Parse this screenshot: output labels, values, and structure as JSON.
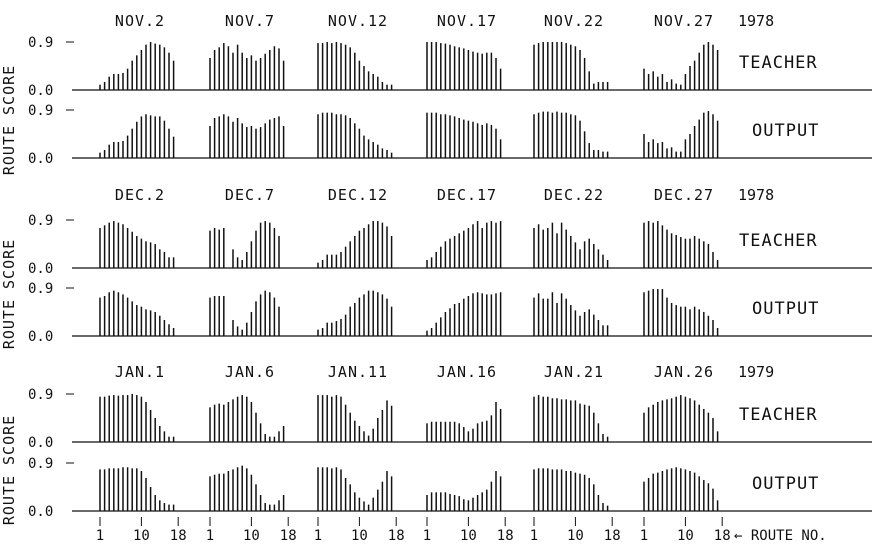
{
  "chart_data": {
    "type": "bar",
    "y_axis_label": "ROUTE SCORE",
    "y_ticks": [
      "0.9",
      "0.0"
    ],
    "ylim": [
      0,
      0.9
    ],
    "x_ticks": [
      "1",
      "10",
      "18"
    ],
    "x_axis_label": "ROUTE NO.",
    "routes": [
      1,
      2,
      3,
      4,
      5,
      6,
      7,
      8,
      9,
      10,
      11,
      12,
      13,
      14,
      15,
      16,
      17,
      18
    ],
    "groups": [
      {
        "year": "1978",
        "dates": [
          "NOV.2",
          "NOV.7",
          "NOV.12",
          "NOV.17",
          "NOV.22",
          "NOV.27"
        ],
        "teacher": {
          "label": "TEACHER",
          "panels": [
            [
              0.1,
              0.15,
              0.25,
              0.3,
              0.3,
              0.32,
              0.4,
              0.55,
              0.65,
              0.75,
              0.85,
              0.9,
              0.87,
              0.85,
              0.8,
              0.7,
              0.55,
              0.0
            ],
            [
              0.6,
              0.75,
              0.8,
              0.88,
              0.82,
              0.7,
              0.85,
              0.7,
              0.6,
              0.65,
              0.55,
              0.6,
              0.68,
              0.75,
              0.82,
              0.78,
              0.55,
              0.0
            ],
            [
              0.88,
              0.88,
              0.9,
              0.88,
              0.9,
              0.88,
              0.85,
              0.8,
              0.7,
              0.55,
              0.45,
              0.35,
              0.3,
              0.25,
              0.15,
              0.1,
              0.1,
              0.0
            ],
            [
              0.9,
              0.9,
              0.9,
              0.88,
              0.87,
              0.85,
              0.82,
              0.8,
              0.78,
              0.75,
              0.72,
              0.7,
              0.68,
              0.7,
              0.7,
              0.6,
              0.4,
              0.0
            ],
            [
              0.85,
              0.88,
              0.9,
              0.9,
              0.9,
              0.9,
              0.9,
              0.88,
              0.85,
              0.82,
              0.75,
              0.6,
              0.35,
              0.12,
              0.15,
              0.15,
              0.15,
              0.0
            ],
            [
              0.4,
              0.3,
              0.35,
              0.25,
              0.3,
              0.15,
              0.2,
              0.12,
              0.1,
              0.3,
              0.45,
              0.55,
              0.7,
              0.85,
              0.9,
              0.85,
              0.75,
              0.0
            ]
          ]
        },
        "output": {
          "label": "OUTPUT",
          "panels": [
            [
              0.1,
              0.15,
              0.25,
              0.3,
              0.3,
              0.32,
              0.42,
              0.55,
              0.68,
              0.78,
              0.82,
              0.8,
              0.78,
              0.78,
              0.7,
              0.55,
              0.4,
              0.0
            ],
            [
              0.6,
              0.75,
              0.78,
              0.82,
              0.78,
              0.68,
              0.75,
              0.65,
              0.58,
              0.6,
              0.55,
              0.58,
              0.65,
              0.72,
              0.75,
              0.78,
              0.6,
              0.0
            ],
            [
              0.82,
              0.85,
              0.85,
              0.85,
              0.82,
              0.82,
              0.8,
              0.75,
              0.65,
              0.55,
              0.42,
              0.35,
              0.3,
              0.25,
              0.18,
              0.15,
              0.1,
              0.0
            ],
            [
              0.85,
              0.85,
              0.85,
              0.82,
              0.82,
              0.8,
              0.78,
              0.75,
              0.72,
              0.7,
              0.68,
              0.65,
              0.62,
              0.65,
              0.62,
              0.55,
              0.35,
              0.0
            ],
            [
              0.82,
              0.85,
              0.87,
              0.87,
              0.85,
              0.87,
              0.85,
              0.85,
              0.82,
              0.8,
              0.7,
              0.5,
              0.28,
              0.15,
              0.15,
              0.12,
              0.12,
              0.0
            ],
            [
              0.45,
              0.3,
              0.35,
              0.28,
              0.3,
              0.18,
              0.2,
              0.12,
              0.12,
              0.35,
              0.45,
              0.6,
              0.72,
              0.85,
              0.88,
              0.82,
              0.7,
              0.0
            ]
          ]
        }
      },
      {
        "year": "1978",
        "dates": [
          "DEC.2",
          "DEC.7",
          "DEC.12",
          "DEC.17",
          "DEC.22",
          "DEC.27"
        ],
        "teacher": {
          "label": "TEACHER",
          "panels": [
            [
              0.75,
              0.8,
              0.85,
              0.88,
              0.85,
              0.82,
              0.75,
              0.68,
              0.6,
              0.55,
              0.5,
              0.48,
              0.45,
              0.35,
              0.3,
              0.2,
              0.2,
              0.0
            ],
            [
              0.7,
              0.75,
              0.72,
              0.75,
              0.0,
              0.35,
              0.2,
              0.15,
              0.3,
              0.5,
              0.7,
              0.85,
              0.88,
              0.85,
              0.75,
              0.6,
              0.0,
              0.0
            ],
            [
              0.1,
              0.15,
              0.25,
              0.25,
              0.25,
              0.3,
              0.4,
              0.5,
              0.6,
              0.7,
              0.75,
              0.82,
              0.88,
              0.88,
              0.85,
              0.78,
              0.6,
              0.0
            ],
            [
              0.15,
              0.2,
              0.3,
              0.4,
              0.5,
              0.55,
              0.6,
              0.65,
              0.7,
              0.75,
              0.82,
              0.88,
              0.75,
              0.85,
              0.88,
              0.85,
              0.88,
              0.0
            ],
            [
              0.75,
              0.82,
              0.72,
              0.75,
              0.85,
              0.65,
              0.85,
              0.72,
              0.6,
              0.48,
              0.35,
              0.5,
              0.55,
              0.45,
              0.35,
              0.25,
              0.15,
              0.0
            ],
            [
              0.85,
              0.88,
              0.85,
              0.88,
              0.8,
              0.72,
              0.65,
              0.62,
              0.58,
              0.55,
              0.55,
              0.6,
              0.55,
              0.5,
              0.45,
              0.3,
              0.15,
              0.0
            ]
          ]
        },
        "output": {
          "label": "OUTPUT",
          "panels": [
            [
              0.72,
              0.75,
              0.82,
              0.85,
              0.82,
              0.78,
              0.72,
              0.65,
              0.58,
              0.55,
              0.5,
              0.48,
              0.45,
              0.38,
              0.3,
              0.22,
              0.15,
              0.0
            ],
            [
              0.72,
              0.75,
              0.75,
              0.75,
              0.0,
              0.3,
              0.18,
              0.12,
              0.25,
              0.45,
              0.65,
              0.78,
              0.85,
              0.82,
              0.72,
              0.55,
              0.0,
              0.0
            ],
            [
              0.12,
              0.15,
              0.25,
              0.25,
              0.28,
              0.32,
              0.4,
              0.55,
              0.62,
              0.72,
              0.78,
              0.85,
              0.85,
              0.82,
              0.78,
              0.7,
              0.55,
              0.0
            ],
            [
              0.1,
              0.15,
              0.25,
              0.35,
              0.45,
              0.52,
              0.6,
              0.62,
              0.7,
              0.75,
              0.8,
              0.82,
              0.8,
              0.78,
              0.78,
              0.8,
              0.82,
              0.0
            ],
            [
              0.72,
              0.8,
              0.7,
              0.7,
              0.82,
              0.62,
              0.8,
              0.7,
              0.58,
              0.48,
              0.38,
              0.45,
              0.5,
              0.4,
              0.3,
              0.2,
              0.2,
              0.0
            ],
            [
              0.82,
              0.85,
              0.88,
              0.88,
              0.88,
              0.72,
              0.62,
              0.58,
              0.55,
              0.55,
              0.5,
              0.55,
              0.5,
              0.45,
              0.38,
              0.3,
              0.15,
              0.0
            ]
          ]
        }
      },
      {
        "year": "1979",
        "dates": [
          "JAN.1",
          "JAN.6",
          "JAN.11",
          "JAN.16",
          "JAN.21",
          "JAN.26"
        ],
        "teacher": {
          "label": "TEACHER",
          "panels": [
            [
              0.85,
              0.85,
              0.87,
              0.88,
              0.87,
              0.88,
              0.88,
              0.9,
              0.88,
              0.85,
              0.75,
              0.6,
              0.45,
              0.3,
              0.2,
              0.1,
              0.1,
              0.0
            ],
            [
              0.65,
              0.7,
              0.72,
              0.7,
              0.75,
              0.8,
              0.85,
              0.88,
              0.85,
              0.75,
              0.55,
              0.35,
              0.15,
              0.1,
              0.1,
              0.2,
              0.3,
              0.0
            ],
            [
              0.88,
              0.88,
              0.88,
              0.85,
              0.88,
              0.85,
              0.7,
              0.55,
              0.4,
              0.3,
              0.2,
              0.12,
              0.25,
              0.45,
              0.6,
              0.78,
              0.68,
              0.0
            ],
            [
              0.35,
              0.38,
              0.38,
              0.38,
              0.38,
              0.38,
              0.38,
              0.35,
              0.28,
              0.2,
              0.25,
              0.35,
              0.38,
              0.4,
              0.5,
              0.75,
              0.62,
              0.0
            ],
            [
              0.85,
              0.88,
              0.85,
              0.85,
              0.82,
              0.82,
              0.8,
              0.8,
              0.78,
              0.78,
              0.72,
              0.7,
              0.68,
              0.55,
              0.35,
              0.15,
              0.1,
              0.0
            ],
            [
              0.55,
              0.65,
              0.7,
              0.75,
              0.78,
              0.8,
              0.82,
              0.85,
              0.88,
              0.85,
              0.82,
              0.78,
              0.7,
              0.62,
              0.55,
              0.45,
              0.2,
              0.0
            ]
          ]
        },
        "output": {
          "label": "OUTPUT",
          "panels": [
            [
              0.78,
              0.78,
              0.8,
              0.8,
              0.8,
              0.82,
              0.82,
              0.8,
              0.8,
              0.75,
              0.62,
              0.45,
              0.3,
              0.2,
              0.15,
              0.12,
              0.12,
              0.0
            ],
            [
              0.65,
              0.68,
              0.7,
              0.7,
              0.75,
              0.78,
              0.82,
              0.85,
              0.8,
              0.68,
              0.5,
              0.3,
              0.15,
              0.12,
              0.12,
              0.2,
              0.3,
              0.0
            ],
            [
              0.82,
              0.82,
              0.82,
              0.8,
              0.82,
              0.78,
              0.62,
              0.5,
              0.35,
              0.25,
              0.18,
              0.12,
              0.25,
              0.4,
              0.55,
              0.75,
              0.65,
              0.0
            ],
            [
              0.3,
              0.35,
              0.35,
              0.35,
              0.35,
              0.32,
              0.3,
              0.28,
              0.22,
              0.2,
              0.25,
              0.3,
              0.35,
              0.4,
              0.55,
              0.75,
              0.65,
              0.0
            ],
            [
              0.78,
              0.8,
              0.8,
              0.8,
              0.78,
              0.78,
              0.78,
              0.75,
              0.75,
              0.72,
              0.7,
              0.68,
              0.62,
              0.5,
              0.3,
              0.15,
              0.1,
              0.0
            ],
            [
              0.55,
              0.62,
              0.7,
              0.72,
              0.75,
              0.78,
              0.8,
              0.82,
              0.8,
              0.78,
              0.75,
              0.72,
              0.65,
              0.58,
              0.52,
              0.42,
              0.2,
              0.0
            ]
          ]
        }
      }
    ]
  }
}
